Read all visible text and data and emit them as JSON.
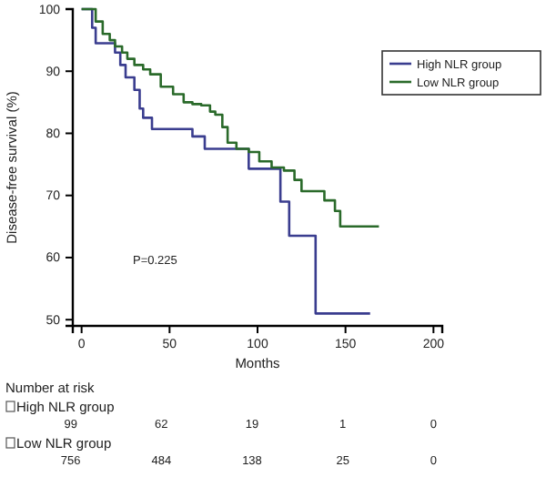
{
  "chart_data": {
    "type": "step",
    "xlabel": "Months",
    "ylabel": "Disease-free survival (%)",
    "xlim": [
      -5,
      205
    ],
    "ylim": [
      49,
      100
    ],
    "xticks": [
      0,
      50,
      100,
      150,
      200
    ],
    "yticks": [
      50,
      60,
      70,
      80,
      90,
      100
    ],
    "legend": "top right",
    "marker": "none",
    "line_style": "solid",
    "grid": false,
    "series": [
      {
        "name": "High NLR group",
        "color": "#3a3d8f",
        "x": [
          0,
          6,
          8,
          19,
          22,
          25,
          30,
          33,
          35,
          40,
          63,
          70,
          95,
          113,
          118,
          133,
          164
        ],
        "values": [
          100,
          97,
          94.5,
          93,
          91,
          89,
          87,
          84,
          82.5,
          80.7,
          79.5,
          77.5,
          74.3,
          69,
          63.5,
          51,
          51
        ]
      },
      {
        "name": "Low NLR group",
        "color": "#2a6a2a",
        "x": [
          0,
          8,
          12,
          16,
          19,
          23,
          26,
          30,
          35,
          39,
          45,
          52,
          58,
          63,
          68,
          73,
          76,
          80,
          83,
          88,
          95,
          101,
          108,
          115,
          121,
          125,
          138,
          144,
          147,
          169
        ],
        "values": [
          100,
          98,
          96,
          95,
          94,
          93,
          92,
          91,
          90.3,
          89.5,
          87.5,
          86.3,
          85,
          84.7,
          84.5,
          83.5,
          83,
          81,
          78.5,
          77.5,
          77,
          75.5,
          74.5,
          74,
          72.5,
          70.7,
          69.2,
          67.5,
          65,
          65
        ]
      }
    ],
    "annotations": [
      "P=0.225",
      "Number at risk",
      "High NLR group",
      "99",
      "62",
      "19",
      "1",
      "0",
      "Low NLR group",
      "756",
      "484",
      "138",
      "25",
      "0"
    ]
  }
}
